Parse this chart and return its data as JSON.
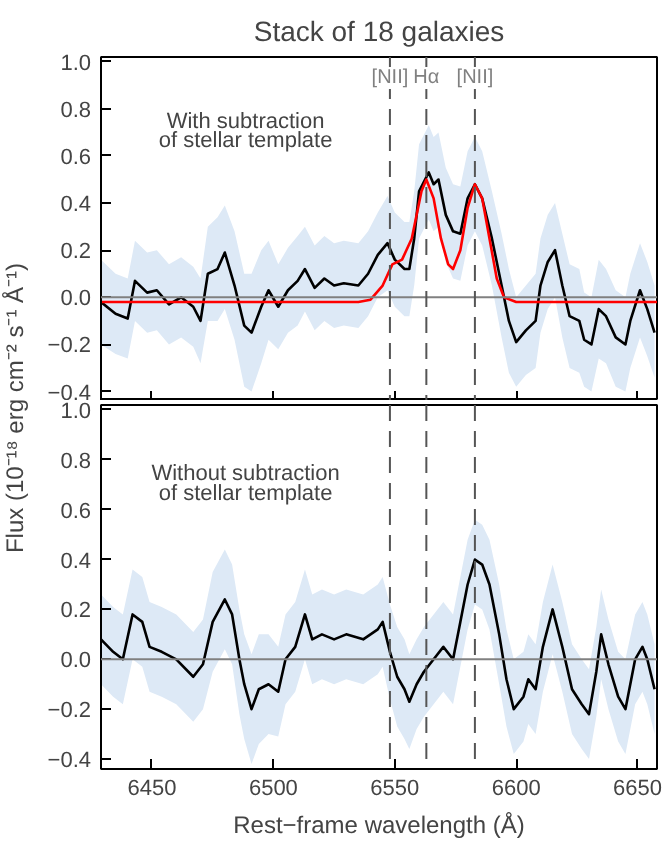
{
  "chart_data": [
    {
      "type": "line",
      "title": "Stack of 18 galaxies",
      "ylabel": "Flux (10⁻¹⁸ erg cm⁻² s⁻¹ Å⁻¹)",
      "annotations": [
        "With subtraction\nof stellar template"
      ],
      "xlim": [
        6429,
        6658
      ],
      "xticks": [
        6450,
        6500,
        6550,
        6600,
        6650
      ],
      "ylim": [
        -0.44,
        1.02
      ],
      "yticks": [
        {
          "value": -0.4,
          "label": "−0.4"
        },
        {
          "value": -0.2,
          "label": "−0.2"
        },
        {
          "value": 0,
          "label": "0.0"
        },
        {
          "value": 0.2,
          "label": "0.2"
        },
        {
          "value": 0.4,
          "label": "0.4"
        },
        {
          "value": 0.6,
          "label": "0.6"
        },
        {
          "value": 0.8,
          "label": "0.8"
        },
        {
          "value": 1,
          "label": "1.0"
        }
      ],
      "tick_labels": "y",
      "grid": false,
      "ref_lines": [
        {
          "axis": "y",
          "value": 0,
          "color": "#808080",
          "line_style": "solid"
        },
        {
          "axis": "x",
          "value": 6548,
          "label": "[NII]",
          "color": "#555555",
          "line_style": "dashed"
        },
        {
          "axis": "x",
          "value": 6563,
          "label": "Hα",
          "color": "#555555",
          "line_style": "dashed"
        },
        {
          "axis": "x",
          "value": 6583,
          "label": "[NII]",
          "color": "#555555",
          "line_style": "dashed"
        }
      ],
      "series": [
        {
          "color": "#000000",
          "x": [
            6429,
            6435,
            6440,
            6443,
            6448,
            6452,
            6457,
            6462,
            6467,
            6470,
            6473,
            6477,
            6480,
            6484,
            6488,
            6491,
            6495,
            6498,
            6502,
            6506,
            6510,
            6513,
            6517,
            6521,
            6525,
            6529,
            6535,
            6539,
            6543,
            6547,
            6550,
            6554,
            6556,
            6558,
            6560,
            6564,
            6566,
            6568,
            6571,
            6574,
            6577,
            6580,
            6583,
            6586,
            6590,
            6594,
            6597,
            6600,
            6604,
            6608,
            6610,
            6613,
            6616,
            6619,
            6622,
            6626,
            6628,
            6631,
            6634,
            6637,
            6641,
            6645,
            6647,
            6651,
            6654,
            6657
          ],
          "values": [
            -0.02,
            -0.07,
            -0.09,
            0.07,
            0.02,
            0.03,
            -0.03,
            0.0,
            -0.04,
            -0.1,
            0.1,
            0.12,
            0.19,
            0.05,
            -0.12,
            -0.15,
            -0.04,
            0.03,
            -0.04,
            0.03,
            0.07,
            0.12,
            0.04,
            0.08,
            0.05,
            0.06,
            0.05,
            0.1,
            0.18,
            0.23,
            0.16,
            0.12,
            0.12,
            0.25,
            0.45,
            0.53,
            0.48,
            0.5,
            0.35,
            0.28,
            0.27,
            0.42,
            0.48,
            0.42,
            0.25,
            0.05,
            -0.1,
            -0.19,
            -0.14,
            -0.1,
            0.05,
            0.15,
            0.2,
            0.05,
            -0.08,
            -0.1,
            -0.18,
            -0.2,
            -0.05,
            -0.08,
            -0.17,
            -0.2,
            -0.1,
            0.03,
            -0.05,
            -0.15
          ],
          "lower": [
            -0.2,
            -0.24,
            -0.26,
            -0.1,
            -0.15,
            -0.14,
            -0.2,
            -0.17,
            -0.21,
            -0.28,
            -0.1,
            -0.1,
            -0.05,
            -0.18,
            -0.38,
            -0.4,
            -0.28,
            -0.18,
            -0.22,
            -0.15,
            -0.12,
            -0.06,
            -0.14,
            -0.1,
            -0.13,
            -0.12,
            -0.13,
            -0.08,
            0.0,
            0.03,
            -0.04,
            -0.08,
            -0.08,
            0.05,
            0.25,
            0.33,
            0.28,
            0.3,
            0.15,
            0.08,
            0.07,
            0.22,
            0.28,
            0.22,
            0.05,
            -0.17,
            -0.32,
            -0.38,
            -0.33,
            -0.3,
            -0.15,
            -0.05,
            0.0,
            -0.17,
            -0.3,
            -0.32,
            -0.38,
            -0.4,
            -0.26,
            -0.28,
            -0.38,
            -0.4,
            -0.3,
            -0.17,
            -0.25,
            -0.34
          ],
          "upper": [
            0.16,
            0.1,
            0.08,
            0.24,
            0.19,
            0.2,
            0.14,
            0.17,
            0.13,
            0.08,
            0.3,
            0.34,
            0.39,
            0.28,
            0.1,
            0.1,
            0.2,
            0.24,
            0.14,
            0.21,
            0.26,
            0.3,
            0.22,
            0.26,
            0.23,
            0.24,
            0.23,
            0.28,
            0.36,
            0.43,
            0.36,
            0.32,
            0.32,
            0.45,
            0.65,
            0.73,
            0.68,
            0.7,
            0.55,
            0.48,
            0.47,
            0.62,
            0.68,
            0.62,
            0.45,
            0.27,
            0.12,
            0.0,
            0.05,
            0.1,
            0.25,
            0.35,
            0.4,
            0.27,
            0.14,
            0.12,
            0.02,
            0.0,
            0.16,
            0.12,
            0.03,
            0.0,
            0.1,
            0.23,
            0.15,
            0.05
          ]
        },
        {
          "color": "#ff0000",
          "x": [
            6429,
            6535,
            6540,
            6545,
            6549,
            6553,
            6557,
            6561,
            6563,
            6566,
            6569,
            6572,
            6574,
            6577,
            6580,
            6583,
            6586,
            6589,
            6592,
            6595,
            6600,
            6658
          ],
          "values": [
            -0.02,
            -0.02,
            -0.01,
            0.05,
            0.14,
            0.16,
            0.25,
            0.45,
            0.5,
            0.42,
            0.25,
            0.14,
            0.12,
            0.2,
            0.38,
            0.48,
            0.42,
            0.25,
            0.08,
            0.0,
            -0.02,
            -0.02
          ]
        }
      ]
    },
    {
      "type": "line",
      "xlabel": "Rest−frame wavelength (Å)",
      "annotations": [
        "Without subtraction\nof stellar template"
      ],
      "xlim": [
        6429,
        6658
      ],
      "xticks": [
        6450,
        6500,
        6550,
        6600,
        6650
      ],
      "ylim": [
        -0.44,
        1.02
      ],
      "yticks": [
        {
          "value": -0.4,
          "label": "−0.4"
        },
        {
          "value": -0.2,
          "label": "−0.2"
        },
        {
          "value": 0,
          "label": "0.0"
        },
        {
          "value": 0.2,
          "label": "0.2"
        },
        {
          "value": 0.4,
          "label": "0.4"
        },
        {
          "value": 0.6,
          "label": "0.6"
        },
        {
          "value": 0.8,
          "label": "0.8"
        },
        {
          "value": 1,
          "label": "1.0"
        }
      ],
      "grid": false,
      "ref_lines": [
        {
          "axis": "y",
          "value": 0,
          "color": "#808080",
          "line_style": "solid"
        },
        {
          "axis": "x",
          "value": 6548,
          "color": "#555555",
          "line_style": "dashed"
        },
        {
          "axis": "x",
          "value": 6563,
          "color": "#555555",
          "line_style": "dashed"
        },
        {
          "axis": "x",
          "value": 6583,
          "color": "#555555",
          "line_style": "dashed"
        }
      ],
      "series": [
        {
          "color": "#000000",
          "x": [
            6429,
            6434,
            6438,
            6442,
            6446,
            6449,
            6454,
            6460,
            6467,
            6471,
            6475,
            6480,
            6483,
            6486,
            6488,
            6491,
            6494,
            6498,
            6502,
            6505,
            6509,
            6513,
            6516,
            6520,
            6525,
            6530,
            6537,
            6543,
            6545,
            6548,
            6551,
            6554,
            6556,
            6559,
            6562,
            6566,
            6570,
            6574,
            6577,
            6580,
            6583,
            6586,
            6589,
            6593,
            6596,
            6599,
            6603,
            6605,
            6608,
            6611,
            6615,
            6619,
            6623,
            6627,
            6630,
            6633,
            6635,
            6638,
            6642,
            6645,
            6649,
            6652,
            6654,
            6657
          ],
          "values": [
            0.08,
            0.03,
            0.0,
            0.18,
            0.15,
            0.05,
            0.03,
            0.0,
            -0.07,
            -0.02,
            0.15,
            0.24,
            0.18,
            0.0,
            -0.1,
            -0.2,
            -0.12,
            -0.1,
            -0.13,
            0.0,
            0.05,
            0.18,
            0.08,
            0.1,
            0.08,
            0.1,
            0.08,
            0.12,
            0.15,
            0.03,
            -0.07,
            -0.12,
            -0.17,
            -0.1,
            -0.05,
            0.0,
            0.05,
            0.0,
            0.15,
            0.3,
            0.4,
            0.38,
            0.3,
            0.1,
            -0.08,
            -0.2,
            -0.15,
            -0.08,
            -0.12,
            0.05,
            0.2,
            0.05,
            -0.12,
            -0.18,
            -0.22,
            -0.05,
            0.1,
            -0.02,
            -0.15,
            -0.2,
            0.0,
            0.05,
            0.0,
            -0.12
          ],
          "lower": [
            -0.1,
            -0.15,
            -0.18,
            0.0,
            -0.03,
            -0.13,
            -0.15,
            -0.18,
            -0.25,
            -0.2,
            -0.05,
            0.04,
            -0.02,
            -0.22,
            -0.32,
            -0.42,
            -0.34,
            -0.3,
            -0.31,
            -0.18,
            -0.13,
            0.0,
            -0.1,
            -0.08,
            -0.1,
            -0.08,
            -0.1,
            -0.06,
            -0.03,
            -0.16,
            -0.27,
            -0.32,
            -0.36,
            -0.28,
            -0.23,
            -0.18,
            -0.13,
            -0.18,
            -0.03,
            0.12,
            0.22,
            0.2,
            0.12,
            -0.1,
            -0.27,
            -0.38,
            -0.33,
            -0.26,
            -0.3,
            -0.13,
            0.02,
            -0.13,
            -0.3,
            -0.36,
            -0.4,
            -0.23,
            -0.08,
            -0.2,
            -0.33,
            -0.38,
            -0.18,
            -0.13,
            -0.18,
            -0.3
          ],
          "upper": [
            0.26,
            0.21,
            0.18,
            0.36,
            0.33,
            0.23,
            0.21,
            0.18,
            0.11,
            0.16,
            0.35,
            0.44,
            0.38,
            0.2,
            0.1,
            0.02,
            0.1,
            0.1,
            0.05,
            0.18,
            0.23,
            0.36,
            0.26,
            0.28,
            0.26,
            0.28,
            0.26,
            0.3,
            0.33,
            0.22,
            0.13,
            0.08,
            0.02,
            0.08,
            0.13,
            0.18,
            0.23,
            0.18,
            0.33,
            0.48,
            0.56,
            0.54,
            0.48,
            0.3,
            0.12,
            0.0,
            0.03,
            0.1,
            0.06,
            0.23,
            0.38,
            0.23,
            0.06,
            0.0,
            -0.04,
            0.13,
            0.28,
            0.16,
            0.03,
            0.0,
            0.18,
            0.23,
            0.18,
            0.06
          ]
        }
      ]
    }
  ]
}
